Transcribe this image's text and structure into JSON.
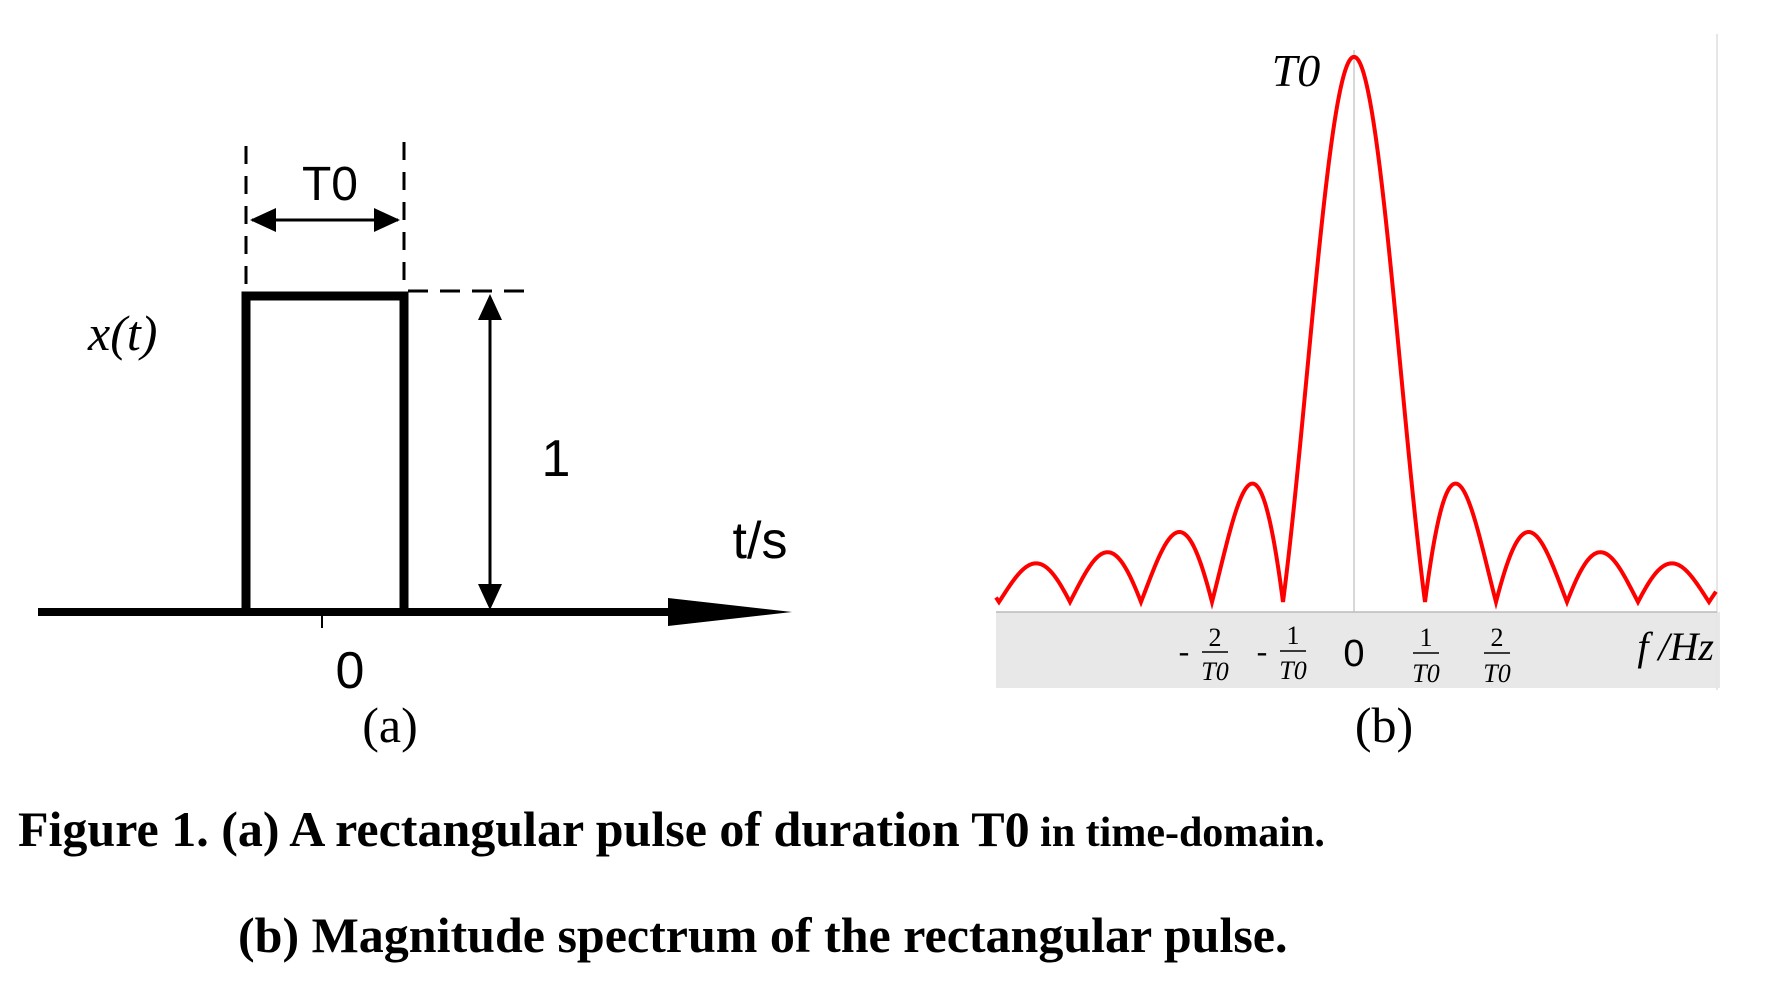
{
  "panel_a": {
    "label": "(a)",
    "ylabel": "x(t)",
    "xlabel": "t/s",
    "width_label": "T0",
    "height_label": "1",
    "origin_label": "0"
  },
  "panel_b": {
    "label": "(b)",
    "peak_label": "T0",
    "xlabel": "f /Hz",
    "origin_label": "0",
    "tick_labels": [
      {
        "sign": "-",
        "num": "2",
        "den": "T0"
      },
      {
        "sign": "-",
        "num": "1",
        "den": "T0"
      },
      {
        "sign": "",
        "num": "1",
        "den": "T0"
      },
      {
        "sign": "",
        "num": "2",
        "den": "T0"
      }
    ],
    "curve_color": "#ff0000",
    "band_color": "#e8e8e8"
  },
  "caption": {
    "line1_main": "Figure 1. (a) A rectangular pulse of duration T0",
    "line1_tail": " in time-domain.",
    "line2": "(b) Magnitude spectrum of the rectangular pulse."
  }
}
